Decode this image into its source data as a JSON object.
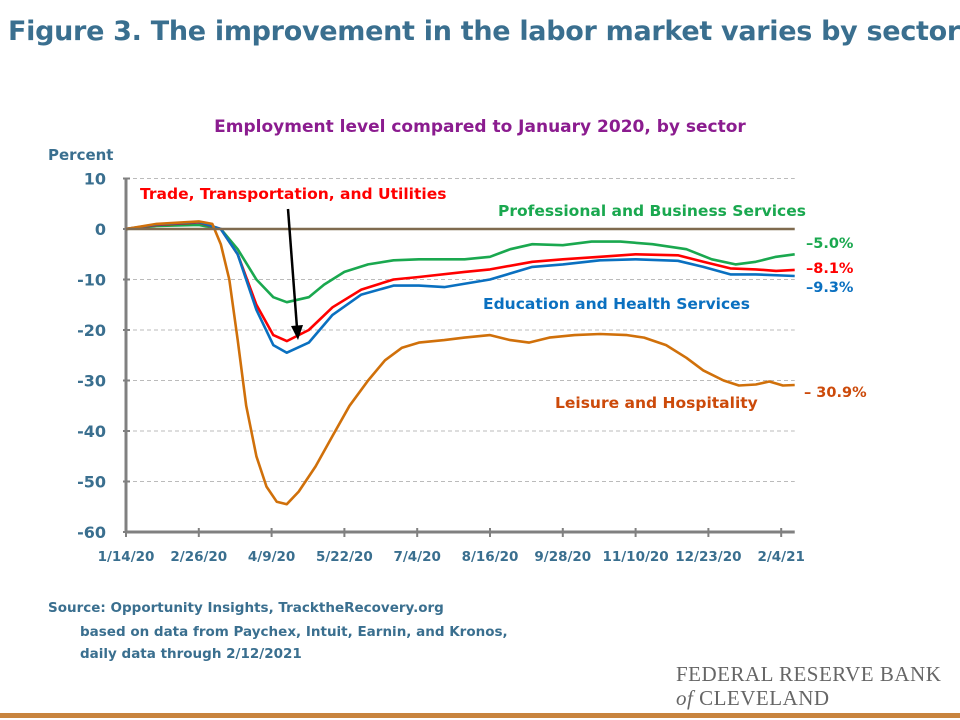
{
  "title": "Figure 3. The improvement in the labor market varies by sector",
  "source": {
    "line1": "Source: Opportunity Insights, TracktheRecovery.org",
    "line2": "based on data from Paychex, Intuit, Earnin, and Kronos,",
    "line3": "daily data through 2/12/2021"
  },
  "logo": {
    "line1": "FEDERAL RESERVE BANK",
    "of": "of",
    "line2": "CLEVELAND"
  },
  "colors": {
    "title": "#3a6f8f",
    "subtitle": "#8b1c8f",
    "zero_line": "#7f6a4f",
    "accent_bar": "#c8843e"
  },
  "chart_data": {
    "type": "line",
    "title": "Employment level compared to January 2020, by sector",
    "ylabel": "Percent",
    "xlabel": "",
    "ylim": [
      -60,
      10
    ],
    "yticks": [
      "10",
      "0",
      "-10",
      "-20",
      "-30",
      "-40",
      "-50",
      "-60"
    ],
    "xticks": [
      "1/14/20",
      "2/26/20",
      "4/9/20",
      "5/22/20",
      "7/4/20",
      "8/16/20",
      "9/28/20",
      "11/10/20",
      "12/23/20",
      "2/4/21"
    ],
    "xrange": [
      "2020-01-14",
      "2021-02-12"
    ],
    "grid": "horizontal dashed",
    "annotation_arrow": "Trade, Transportation, and Utilities",
    "series": [
      {
        "name": "Professional and Business Services",
        "color": "#1aa84f",
        "end_label": "–5.0%",
        "points": [
          [
            "2020-01-14",
            0
          ],
          [
            "2020-02-01",
            0.6
          ],
          [
            "2020-02-26",
            0.8
          ],
          [
            "2020-03-10",
            0
          ],
          [
            "2020-03-20",
            -4
          ],
          [
            "2020-03-31",
            -10
          ],
          [
            "2020-04-10",
            -13.5
          ],
          [
            "2020-04-18",
            -14.5
          ],
          [
            "2020-05-01",
            -13.5
          ],
          [
            "2020-05-10",
            -11
          ],
          [
            "2020-05-22",
            -8.5
          ],
          [
            "2020-06-05",
            -7
          ],
          [
            "2020-06-20",
            -6.2
          ],
          [
            "2020-07-05",
            -6
          ],
          [
            "2020-08-01",
            -6
          ],
          [
            "2020-08-16",
            -5.5
          ],
          [
            "2020-08-28",
            -4
          ],
          [
            "2020-09-10",
            -3
          ],
          [
            "2020-09-28",
            -3.2
          ],
          [
            "2020-10-15",
            -2.5
          ],
          [
            "2020-11-01",
            -2.5
          ],
          [
            "2020-11-20",
            -3
          ],
          [
            "2020-12-10",
            -4
          ],
          [
            "2020-12-25",
            -6
          ],
          [
            "2021-01-08",
            -7
          ],
          [
            "2021-01-20",
            -6.5
          ],
          [
            "2021-02-01",
            -5.5
          ],
          [
            "2021-02-12",
            -5.0
          ]
        ]
      },
      {
        "name": "Trade, Transportation, and Utilities",
        "color": "#ff0000",
        "end_label": "–8.1%",
        "points": [
          [
            "2020-01-14",
            0
          ],
          [
            "2020-02-01",
            0.8
          ],
          [
            "2020-02-26",
            1.3
          ],
          [
            "2020-03-10",
            0
          ],
          [
            "2020-03-20",
            -5
          ],
          [
            "2020-03-31",
            -15
          ],
          [
            "2020-04-10",
            -21
          ],
          [
            "2020-04-18",
            -22.2
          ],
          [
            "2020-05-01",
            -20
          ],
          [
            "2020-05-15",
            -15.5
          ],
          [
            "2020-06-01",
            -12
          ],
          [
            "2020-06-20",
            -10
          ],
          [
            "2020-07-05",
            -9.5
          ],
          [
            "2020-08-01",
            -8.5
          ],
          [
            "2020-08-16",
            -8
          ],
          [
            "2020-09-10",
            -6.5
          ],
          [
            "2020-09-28",
            -6
          ],
          [
            "2020-10-20",
            -5.5
          ],
          [
            "2020-11-10",
            -5
          ],
          [
            "2020-12-05",
            -5.2
          ],
          [
            "2020-12-20",
            -6.5
          ],
          [
            "2021-01-05",
            -7.8
          ],
          [
            "2021-01-20",
            -8
          ],
          [
            "2021-02-01",
            -8.3
          ],
          [
            "2021-02-12",
            -8.1
          ]
        ]
      },
      {
        "name": "Education and Health Services",
        "color": "#0a70c0",
        "end_label": "–9.3%",
        "points": [
          [
            "2020-01-14",
            0
          ],
          [
            "2020-02-01",
            0.9
          ],
          [
            "2020-02-26",
            1.4
          ],
          [
            "2020-03-10",
            0
          ],
          [
            "2020-03-20",
            -5
          ],
          [
            "2020-03-31",
            -16
          ],
          [
            "2020-04-10",
            -23
          ],
          [
            "2020-04-18",
            -24.5
          ],
          [
            "2020-05-01",
            -22.5
          ],
          [
            "2020-05-15",
            -17
          ],
          [
            "2020-06-01",
            -13
          ],
          [
            "2020-06-20",
            -11.2
          ],
          [
            "2020-07-05",
            -11.2
          ],
          [
            "2020-07-20",
            -11.5
          ],
          [
            "2020-08-16",
            -10
          ],
          [
            "2020-09-10",
            -7.5
          ],
          [
            "2020-09-28",
            -7
          ],
          [
            "2020-10-20",
            -6.2
          ],
          [
            "2020-11-10",
            -6
          ],
          [
            "2020-12-05",
            -6.3
          ],
          [
            "2020-12-20",
            -7.5
          ],
          [
            "2021-01-05",
            -9
          ],
          [
            "2021-01-20",
            -9
          ],
          [
            "2021-02-12",
            -9.3
          ]
        ]
      },
      {
        "name": "Leisure and Hospitality",
        "color": "#d0700a",
        "end_label": "– 30.9%",
        "points": [
          [
            "2020-01-14",
            0
          ],
          [
            "2020-02-01",
            1
          ],
          [
            "2020-02-26",
            1.5
          ],
          [
            "2020-03-05",
            1
          ],
          [
            "2020-03-10",
            -3
          ],
          [
            "2020-03-15",
            -10
          ],
          [
            "2020-03-20",
            -22
          ],
          [
            "2020-03-25",
            -35
          ],
          [
            "2020-03-31",
            -45
          ],
          [
            "2020-04-06",
            -51
          ],
          [
            "2020-04-12",
            -54
          ],
          [
            "2020-04-18",
            -54.5
          ],
          [
            "2020-04-25",
            -52
          ],
          [
            "2020-05-05",
            -47
          ],
          [
            "2020-05-15",
            -41
          ],
          [
            "2020-05-25",
            -35
          ],
          [
            "2020-06-05",
            -30
          ],
          [
            "2020-06-15",
            -26
          ],
          [
            "2020-06-25",
            -23.5
          ],
          [
            "2020-07-05",
            -22.5
          ],
          [
            "2020-07-20",
            -22
          ],
          [
            "2020-08-01",
            -21.5
          ],
          [
            "2020-08-16",
            -21
          ],
          [
            "2020-08-28",
            -22
          ],
          [
            "2020-09-08",
            -22.5
          ],
          [
            "2020-09-20",
            -21.5
          ],
          [
            "2020-10-05",
            -21
          ],
          [
            "2020-10-20",
            -20.8
          ],
          [
            "2020-11-05",
            -21
          ],
          [
            "2020-11-15",
            -21.5
          ],
          [
            "2020-11-28",
            -23
          ],
          [
            "2020-12-10",
            -25.5
          ],
          [
            "2020-12-20",
            -28
          ],
          [
            "2021-01-01",
            -30
          ],
          [
            "2021-01-10",
            -31
          ],
          [
            "2021-01-20",
            -30.8
          ],
          [
            "2021-01-28",
            -30.2
          ],
          [
            "2021-02-05",
            -31
          ],
          [
            "2021-02-12",
            -30.9
          ]
        ]
      }
    ]
  }
}
